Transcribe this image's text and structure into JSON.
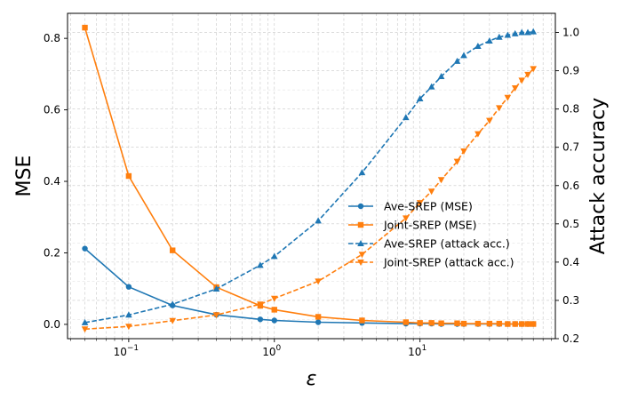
{
  "chart_data": {
    "type": "line",
    "xscale": "log",
    "xlabel": "ε",
    "ylabel_left": "MSE",
    "ylabel_right": "Attack accuracy",
    "xlim": [
      0.038,
      85
    ],
    "ylim_left": [
      -0.04,
      0.87
    ],
    "ylim_right": [
      0.2,
      1.05
    ],
    "grid": true,
    "legend_position": "center-right",
    "x_ticks": [
      {
        "value": 0.1,
        "base": "10",
        "exp": "−1"
      },
      {
        "value": 1,
        "base": "10",
        "exp": "0"
      },
      {
        "value": 10,
        "base": "10",
        "exp": "1"
      }
    ],
    "y_ticks_left": [
      "0.0",
      "0.2",
      "0.4",
      "0.6",
      "0.8"
    ],
    "y_ticks_right": [
      "0.2",
      "0.3",
      "0.4",
      "0.5",
      "0.6",
      "0.7",
      "0.8",
      "0.9",
      "1.0"
    ],
    "series": [
      {
        "name": "Ave-SREP (MSE)",
        "axis": "left",
        "color": "#1f77b4",
        "line": "solid",
        "marker": "circle",
        "x": [
          0.05,
          0.1,
          0.2,
          0.4,
          0.8,
          1,
          2,
          4,
          8,
          10,
          12,
          14,
          18,
          20,
          25,
          30,
          35,
          40,
          45,
          50,
          55,
          60
        ],
        "y": [
          0.212,
          0.105,
          0.053,
          0.027,
          0.014,
          0.011,
          0.006,
          0.004,
          0.002,
          0.002,
          0.002,
          0.001,
          0.001,
          0.001,
          0.001,
          0.001,
          0.001,
          0.001,
          0.001,
          0.001,
          0.001,
          0.001
        ]
      },
      {
        "name": "Joint-SREP (MSE)",
        "axis": "left",
        "color": "#ff7f0e",
        "line": "solid",
        "marker": "square",
        "x": [
          0.05,
          0.1,
          0.2,
          0.4,
          0.8,
          1,
          2,
          4,
          8,
          10,
          12,
          14,
          18,
          20,
          25,
          30,
          35,
          40,
          45,
          50,
          55,
          60
        ],
        "y": [
          0.83,
          0.415,
          0.207,
          0.104,
          0.052,
          0.041,
          0.021,
          0.011,
          0.006,
          0.004,
          0.004,
          0.003,
          0.003,
          0.002,
          0.002,
          0.002,
          0.002,
          0.001,
          0.001,
          0.001,
          0.001,
          0.001
        ]
      },
      {
        "name": "Ave-SREP (attack acc.)",
        "axis": "right",
        "color": "#1f77b4",
        "line": "dashed",
        "marker": "triangle-up",
        "x": [
          0.05,
          0.1,
          0.2,
          0.4,
          0.8,
          1,
          2,
          4,
          8,
          10,
          12,
          14,
          18,
          20,
          25,
          30,
          35,
          40,
          45,
          50,
          55,
          60
        ],
        "y": [
          0.242,
          0.262,
          0.29,
          0.33,
          0.392,
          0.415,
          0.508,
          0.634,
          0.778,
          0.827,
          0.858,
          0.885,
          0.925,
          0.94,
          0.964,
          0.978,
          0.988,
          0.993,
          0.997,
          1.0,
          1.0,
          1.002
        ]
      },
      {
        "name": "Joint-SREP (attack acc.)",
        "axis": "right",
        "color": "#ff7f0e",
        "line": "dashed",
        "marker": "triangle-down",
        "x": [
          0.05,
          0.1,
          0.2,
          0.4,
          0.8,
          1,
          2,
          4,
          8,
          10,
          12,
          14,
          18,
          20,
          25,
          30,
          35,
          40,
          45,
          50,
          55,
          60
        ],
        "y": [
          0.225,
          0.232,
          0.247,
          0.262,
          0.29,
          0.305,
          0.35,
          0.42,
          0.515,
          0.555,
          0.585,
          0.615,
          0.663,
          0.69,
          0.735,
          0.77,
          0.803,
          0.83,
          0.855,
          0.875,
          0.89,
          0.905
        ]
      }
    ]
  }
}
